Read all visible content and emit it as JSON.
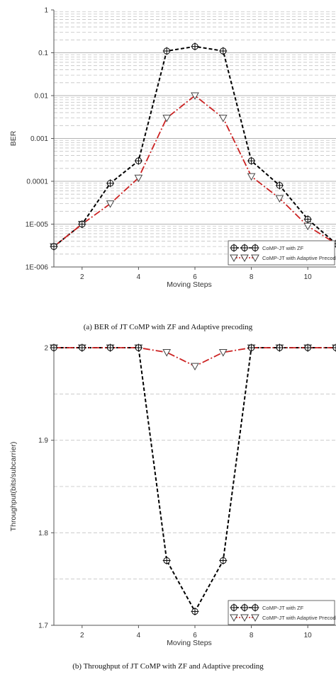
{
  "chart_data": [
    {
      "type": "line",
      "caption": "(a) BER of JT CoMP with ZF and Adaptive precoding",
      "ylabel": "BER",
      "xlabel": "Moving Steps",
      "yscale": "log",
      "ylim": [
        1e-06,
        1
      ],
      "xlim": [
        1,
        11
      ],
      "y_ticks": [
        {
          "v": 1,
          "label": "1"
        },
        {
          "v": 0.1,
          "label": "0.1"
        },
        {
          "v": 0.01,
          "label": "0.01"
        },
        {
          "v": 0.001,
          "label": "0.001"
        },
        {
          "v": 0.0001,
          "label": "0.0001"
        },
        {
          "v": 1e-05,
          "label": "1E-005"
        },
        {
          "v": 1e-06,
          "label": "1E-006"
        }
      ],
      "x_ticks": [
        {
          "v": 2,
          "label": "2"
        },
        {
          "v": 4,
          "label": "4"
        },
        {
          "v": 6,
          "label": "6"
        },
        {
          "v": 8,
          "label": "8"
        },
        {
          "v": 10,
          "label": "10"
        }
      ],
      "grid": true,
      "legend_position": "bottom-right",
      "x": [
        1,
        2,
        3,
        4,
        5,
        6,
        7,
        8,
        9,
        10,
        11
      ],
      "series": [
        {
          "name": "CoMP-JT with ZF",
          "color": "#000000",
          "marker": "cross",
          "values": [
            3e-06,
            1e-05,
            9e-05,
            0.0003,
            0.11,
            0.14,
            0.11,
            0.0003,
            8e-05,
            1.3e-05,
            3.5e-06
          ]
        },
        {
          "name": "CoMP-JT with Adaptive Precoding",
          "color": "#cc2222",
          "marker": "triangle-down",
          "values": [
            3e-06,
            1e-05,
            3e-05,
            0.00012,
            0.003,
            0.01,
            0.003,
            0.00013,
            4e-05,
            9e-06,
            3.5e-06
          ]
        }
      ]
    },
    {
      "type": "line",
      "caption": "(b) Throughput of JT CoMP with ZF and Adaptive precoding",
      "ylabel": "Throughput(bits/subcarrier)",
      "xlabel": "Moving Steps",
      "ylim": [
        1.7,
        2.0
      ],
      "xlim": [
        1,
        11
      ],
      "y_ticks": [
        {
          "v": 2.0,
          "label": "2"
        },
        {
          "v": 1.9,
          "label": "1.9"
        },
        {
          "v": 1.8,
          "label": "1.8"
        },
        {
          "v": 1.7,
          "label": "1.7"
        }
      ],
      "y_gridlines": [
        1.95,
        1.9,
        1.85,
        1.8,
        1.75
      ],
      "x_ticks": [
        {
          "v": 2,
          "label": "2"
        },
        {
          "v": 4,
          "label": "4"
        },
        {
          "v": 6,
          "label": "6"
        },
        {
          "v": 8,
          "label": "8"
        },
        {
          "v": 10,
          "label": "10"
        }
      ],
      "grid": true,
      "legend_position": "bottom-right",
      "x": [
        1,
        2,
        3,
        4,
        5,
        6,
        7,
        8,
        9,
        10,
        11
      ],
      "series": [
        {
          "name": "CoMP-JT with ZF",
          "color": "#000000",
          "marker": "cross",
          "values": [
            2.0,
            2.0,
            2.0,
            2.0,
            1.77,
            1.715,
            1.77,
            2.0,
            2.0,
            2.0,
            2.0
          ]
        },
        {
          "name": "CoMP-JT with Adaptive Precoding",
          "color": "#cc2222",
          "marker": "triangle-down",
          "values": [
            2.0,
            2.0,
            2.0,
            2.0,
            1.995,
            1.98,
            1.995,
            2.0,
            2.0,
            2.0,
            2.0
          ]
        }
      ]
    }
  ]
}
